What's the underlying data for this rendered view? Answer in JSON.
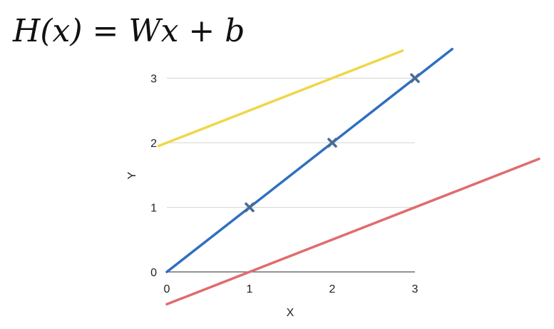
{
  "formula": "H(x) = Wx + b",
  "chart_data": {
    "type": "line",
    "xlabel": "X",
    "ylabel": "Y",
    "x_ticks": [
      "0",
      "1",
      "2",
      "3"
    ],
    "y_ticks": [
      "0",
      "1",
      "2",
      "3"
    ],
    "xlim": [
      0,
      3
    ],
    "ylim": [
      0,
      3
    ],
    "grid": true,
    "points": [
      {
        "x": 1,
        "y": 1
      },
      {
        "x": 2,
        "y": 2
      },
      {
        "x": 3,
        "y": 3
      }
    ],
    "lines": [
      {
        "slope": 0.5,
        "intercept": 2,
        "color": "#f0d64a",
        "x_range": [
          -0.1,
          2.85
        ]
      },
      {
        "slope": 1,
        "intercept": 0,
        "color": "#2f6fc0",
        "x_range": [
          0,
          3.45
        ]
      },
      {
        "slope": 0.5,
        "intercept": -0.5,
        "color": "#e06c6c",
        "x_range": [
          0,
          4.5
        ]
      }
    ],
    "point_color": "#4a6a98"
  }
}
